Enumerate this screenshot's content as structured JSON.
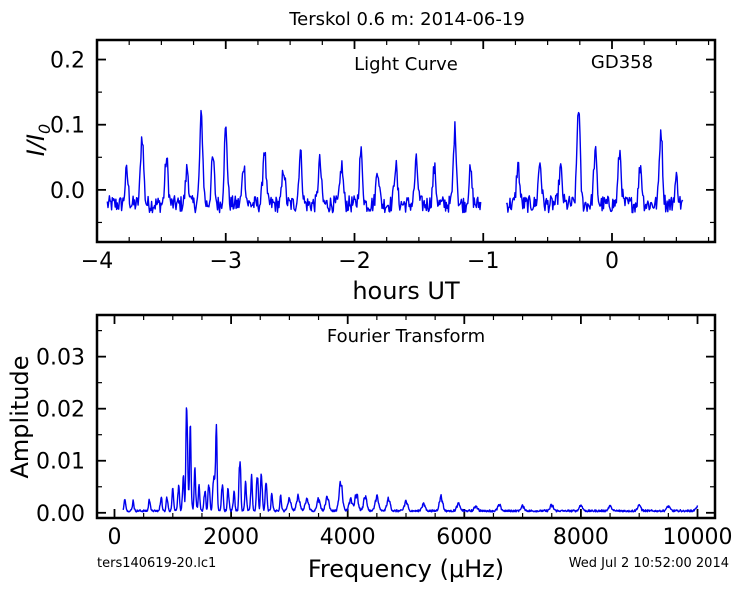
{
  "title": "Terskol 0.6 m:  2014-06-19",
  "footer": {
    "filename": "ters140619-20.lc1",
    "timestamp": "Wed Jul  2 10:52:00 2014"
  },
  "colors": {
    "series": "#0000ee",
    "frame": "#000000"
  },
  "chart_data": [
    {
      "type": "line",
      "panel": "top",
      "annotation": "Light Curve",
      "star_label": "GD358",
      "xlabel": "hours UT",
      "ylabel": "I/I",
      "ylabel_subscript": "0",
      "xlim": [
        -4.0,
        0.8
      ],
      "ylim": [
        -0.08,
        0.23
      ],
      "xticks": [
        -4,
        -3,
        -2,
        -1,
        0
      ],
      "xtick_labels": [
        "−4",
        "−3",
        "−2",
        "−1",
        "0"
      ],
      "yticks": [
        0.0,
        0.1,
        0.2
      ],
      "ytick_labels": [
        "0.0",
        "0.1",
        "0.2"
      ],
      "segments": [
        {
          "x_start": -3.92,
          "x_end": -1.02
        },
        {
          "x_start": -0.82,
          "x_end": 0.55
        }
      ],
      "peaks": [
        [
          -3.77,
          0.03
        ],
        [
          -3.65,
          0.085
        ],
        [
          -3.46,
          0.05
        ],
        [
          -3.3,
          0.035
        ],
        [
          -3.19,
          0.115
        ],
        [
          -3.1,
          0.05
        ],
        [
          -3.0,
          0.095
        ],
        [
          -2.86,
          0.04
        ],
        [
          -2.7,
          0.065
        ],
        [
          -2.55,
          0.035
        ],
        [
          -2.42,
          0.06
        ],
        [
          -2.27,
          0.045
        ],
        [
          -2.1,
          0.04
        ],
        [
          -1.95,
          0.06
        ],
        [
          -1.82,
          0.035
        ],
        [
          -1.68,
          0.04
        ],
        [
          -1.52,
          0.045
        ],
        [
          -1.38,
          0.035
        ],
        [
          -1.22,
          0.095
        ],
        [
          -1.1,
          0.03
        ],
        [
          -0.73,
          0.04
        ],
        [
          -0.56,
          0.045
        ],
        [
          -0.4,
          0.035
        ],
        [
          -0.26,
          0.13
        ],
        [
          -0.13,
          0.06
        ],
        [
          0.06,
          0.06
        ],
        [
          0.22,
          0.04
        ],
        [
          0.38,
          0.095
        ],
        [
          0.5,
          0.02
        ]
      ]
    },
    {
      "type": "line",
      "panel": "bottom",
      "annotation": "Fourier Transform",
      "xlabel": "Frequency (μHz)",
      "ylabel": "Amplitude",
      "xlim": [
        -300,
        10300
      ],
      "ylim": [
        -0.001,
        0.038
      ],
      "xticks": [
        0,
        2000,
        4000,
        6000,
        8000,
        10000
      ],
      "xtick_labels": [
        "0",
        "2000",
        "4000",
        "6000",
        "8000",
        "10000"
      ],
      "yticks": [
        0.0,
        0.01,
        0.02,
        0.03
      ],
      "ytick_labels": [
        "0.00",
        "0.01",
        "0.02",
        "0.03"
      ],
      "x_range": [
        150,
        10000
      ],
      "peaks": [
        [
          180,
          0.0025
        ],
        [
          320,
          0.002
        ],
        [
          600,
          0.0025
        ],
        [
          800,
          0.003
        ],
        [
          900,
          0.003
        ],
        [
          1000,
          0.0045
        ],
        [
          1100,
          0.0055
        ],
        [
          1180,
          0.007
        ],
        [
          1240,
          0.0233
        ],
        [
          1300,
          0.0168
        ],
        [
          1380,
          0.0085
        ],
        [
          1450,
          0.005
        ],
        [
          1550,
          0.0045
        ],
        [
          1620,
          0.006
        ],
        [
          1700,
          0.0075
        ],
        [
          1745,
          0.0172
        ],
        [
          1850,
          0.006
        ],
        [
          1950,
          0.0045
        ],
        [
          2050,
          0.004
        ],
        [
          2150,
          0.0115
        ],
        [
          2250,
          0.006
        ],
        [
          2350,
          0.007
        ],
        [
          2450,
          0.008
        ],
        [
          2520,
          0.008
        ],
        [
          2600,
          0.0065
        ],
        [
          2700,
          0.0035
        ],
        [
          2850,
          0.003
        ],
        [
          3000,
          0.0025
        ],
        [
          3150,
          0.003
        ],
        [
          3300,
          0.0025
        ],
        [
          3500,
          0.0025
        ],
        [
          3650,
          0.003
        ],
        [
          3880,
          0.006
        ],
        [
          4050,
          0.0025
        ],
        [
          4150,
          0.0035
        ],
        [
          4300,
          0.003
        ],
        [
          4500,
          0.003
        ],
        [
          4700,
          0.0025
        ],
        [
          5000,
          0.002
        ],
        [
          5300,
          0.0015
        ],
        [
          5600,
          0.003
        ],
        [
          5900,
          0.0015
        ],
        [
          6200,
          0.001
        ],
        [
          6600,
          0.0012
        ],
        [
          7000,
          0.001
        ],
        [
          7500,
          0.0012
        ],
        [
          8000,
          0.0012
        ],
        [
          8500,
          0.001
        ],
        [
          9000,
          0.0012
        ],
        [
          9500,
          0.001
        ],
        [
          10000,
          0.001
        ]
      ]
    }
  ]
}
